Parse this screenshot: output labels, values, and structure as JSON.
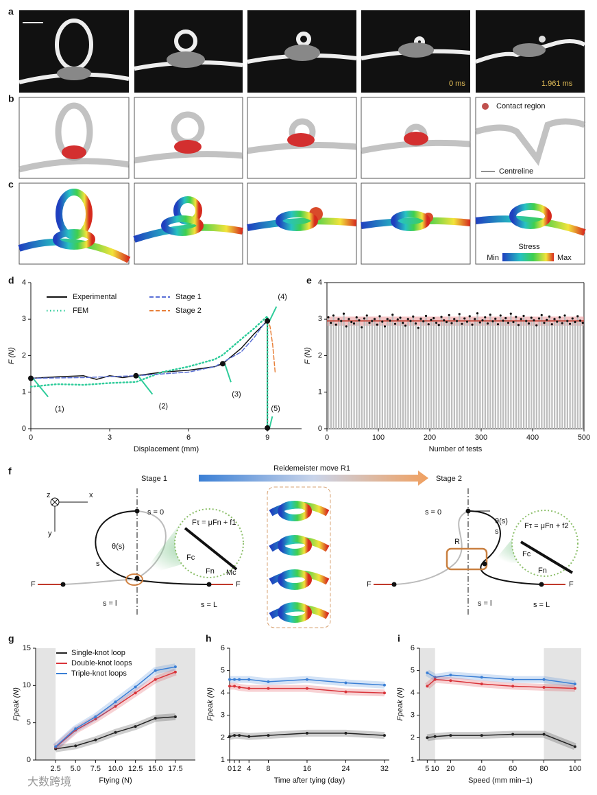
{
  "panel_labels": [
    "a",
    "b",
    "c",
    "d",
    "e",
    "f",
    "g",
    "h",
    "i"
  ],
  "panel_a": {
    "times": [
      "0 ms",
      "1.961 ms"
    ]
  },
  "panel_b": {
    "legend": [
      "Contact region",
      "Centreline"
    ]
  },
  "panel_c": {
    "colorbar": {
      "title": "Stress",
      "min": "Min",
      "max": "Max"
    }
  },
  "panel_f": {
    "title": "Reidemeister move R1",
    "stage1": "Stage 1",
    "stage2": "Stage 2",
    "axes": {
      "z": "z",
      "x": "x",
      "y": "y"
    },
    "left": {
      "s0": "s = 0",
      "s": "s",
      "theta": "θ(s)",
      "F_left": "F",
      "F_right": "F",
      "sl": "s = l",
      "sL": "s = L",
      "ftau": "Fτ = μFn + f1",
      "fc": "Fc",
      "fn": "Fn",
      "mc": "Mc"
    },
    "right": {
      "s0": "s = 0",
      "s": "s",
      "theta": "θ(s)",
      "R": "R",
      "F_left": "F",
      "F_right": "F",
      "sl": "s = l",
      "sL": "s = L",
      "ftau": "Fτ = μFn + f2",
      "fc": "Fc",
      "fn": "Fn"
    }
  },
  "watermark": "大数跨境",
  "chart_data": [
    {
      "type": "line",
      "x_label": "Displacement (mm)",
      "y_label": "F (N)",
      "xlim": [
        0,
        10.3
      ],
      "ylim": [
        0,
        4
      ],
      "xticks": [
        0,
        3,
        6,
        9
      ],
      "yticks": [
        0,
        1,
        2,
        3,
        4
      ],
      "legend": "upper left",
      "series": [
        {
          "name": "Experimental",
          "color": "#111111",
          "dash": "solid",
          "x": [
            0,
            1,
            2,
            2.5,
            3,
            3.5,
            4,
            5,
            6,
            7,
            7.3,
            8,
            8.5,
            9,
            9,
            9
          ],
          "values": [
            1.38,
            1.42,
            1.45,
            1.35,
            1.45,
            1.4,
            1.45,
            1.55,
            1.6,
            1.7,
            1.78,
            2.2,
            2.6,
            2.95,
            1.5,
            0.02
          ]
        },
        {
          "name": "FEM",
          "color": "#2ecc9a",
          "dash": "dotted",
          "x": [
            0,
            1,
            2,
            3,
            4,
            5,
            6,
            7,
            7.3,
            8,
            8.5,
            9,
            9,
            9
          ],
          "values": [
            1.15,
            1.22,
            1.2,
            1.25,
            1.28,
            1.55,
            1.7,
            1.9,
            2.02,
            2.45,
            2.75,
            3.08,
            1.5,
            0.1
          ]
        },
        {
          "name": "Stage 1",
          "color": "#5a6fd6",
          "dash": "dashed",
          "x": [
            0,
            2,
            4,
            6,
            7,
            8,
            8.5,
            9
          ],
          "values": [
            1.38,
            1.4,
            1.45,
            1.55,
            1.7,
            2.1,
            2.5,
            3.0
          ]
        },
        {
          "name": "Stage 2",
          "color": "#e8803a",
          "dash": "dashed",
          "x": [
            9,
            9.1,
            9.2,
            9.3
          ],
          "values": [
            3.0,
            2.8,
            2.3,
            1.5
          ]
        }
      ],
      "annotations": [
        "(1)",
        "(2)",
        "(3)",
        "(4)",
        "(5)"
      ],
      "annotation_x": [
        0,
        4,
        7.3,
        9,
        9
      ],
      "annotation_y": [
        1.38,
        1.45,
        1.78,
        2.95,
        0.02
      ]
    },
    {
      "type": "scatter",
      "x_label": "Number of tests",
      "y_label": "F (N)",
      "xlim": [
        0,
        500
      ],
      "ylim": [
        0,
        4
      ],
      "xticks": [
        0,
        100,
        200,
        300,
        400,
        500
      ],
      "yticks": [
        0,
        1,
        2,
        3,
        4
      ],
      "color": "#111111",
      "bar_color": "#bdbdbd",
      "band": [
        2.82,
        3.07
      ],
      "mean": 2.95,
      "band_color": "#e8888a",
      "x": [
        0,
        5,
        10,
        15,
        20,
        25,
        30,
        35,
        40,
        45,
        50,
        55,
        60,
        65,
        70,
        75,
        80,
        85,
        90,
        95,
        100,
        105,
        110,
        115,
        120,
        125,
        130,
        135,
        140,
        145,
        150,
        155,
        160,
        165,
        170,
        175,
        180,
        185,
        190,
        195,
        200,
        205,
        210,
        215,
        220,
        225,
        230,
        235,
        240,
        245,
        250,
        255,
        260,
        265,
        270,
        275,
        280,
        285,
        290,
        295,
        300,
        305,
        310,
        315,
        320,
        325,
        330,
        335,
        340,
        345,
        350,
        355,
        360,
        365,
        370,
        375,
        380,
        385,
        390,
        395,
        400,
        405,
        410,
        415,
        420,
        425,
        430,
        435,
        440,
        445,
        450,
        455,
        460,
        465,
        470,
        475,
        480,
        485,
        490,
        495
      ],
      "values": [
        3.05,
        2.9,
        3.1,
        2.85,
        3.0,
        2.95,
        3.15,
        2.8,
        3.0,
        2.92,
        2.88,
        3.05,
        2.97,
        2.78,
        3.02,
        3.1,
        2.9,
        2.95,
        3.0,
        2.85,
        3.08,
        2.93,
        2.8,
        3.0,
        2.96,
        3.12,
        2.87,
        2.99,
        3.04,
        2.9,
        2.82,
        3.0,
        2.95,
        3.07,
        2.88,
        2.76,
        3.01,
        2.94,
        3.09,
        2.86,
        2.98,
        3.03,
        2.9,
        2.84,
        3.06,
        2.97,
        2.92,
        3.11,
        2.89,
        3.0,
        2.95,
        3.14,
        2.87,
        3.02,
        2.93,
        3.08,
        2.85,
        3.0,
        3.16,
        2.91,
        2.97,
        3.05,
        2.88,
        3.12,
        2.94,
        3.01,
        2.86,
        3.1,
        2.96,
        3.03,
        2.9,
        3.15,
        2.92,
        3.06,
        2.84,
        3.0,
        3.09,
        2.95,
        2.88,
        3.04,
        2.97,
        2.83,
        3.02,
        3.11,
        2.9,
        2.98,
        3.07,
        2.86,
        3.0,
        2.93,
        3.05,
        2.89,
        3.1,
        2.95,
        2.87,
        3.02,
        2.92,
        3.08,
        2.96,
        2.9
      ]
    },
    {
      "type": "line",
      "x_label": "Ftying (N)",
      "y_label": "Fpeak (N)",
      "xlim": [
        0,
        20
      ],
      "ylim": [
        0,
        15
      ],
      "xticks": [
        2.5,
        {
          "value": 5,
          "label": "5.0"
        },
        7.5,
        {
          "value": 10,
          "label": "10.0"
        },
        12.5,
        {
          "value": 15,
          "label": "15.0"
        },
        17.5
      ],
      "yticks": [
        0,
        5,
        10,
        15
      ],
      "legend": "upper left",
      "markers": true,
      "bands": true,
      "shaded_x": [
        [
          0,
          2.5
        ],
        [
          15,
          20
        ]
      ],
      "x": [
        2.5,
        5,
        7.5,
        10,
        12.5,
        15,
        17.5
      ],
      "series": [
        {
          "name": "Single-knot loop",
          "color": "#222222",
          "values": [
            1.5,
            1.9,
            2.7,
            3.7,
            4.5,
            5.6,
            5.8
          ]
        },
        {
          "name": "Double-knot loops",
          "color": "#d9343a",
          "values": [
            1.7,
            4.0,
            5.5,
            7.2,
            9.0,
            10.8,
            11.8
          ]
        },
        {
          "name": "Triple-knot loops",
          "color": "#3a7fd5",
          "values": [
            1.8,
            4.2,
            5.8,
            7.8,
            9.8,
            12,
            12.5
          ]
        }
      ]
    },
    {
      "type": "line",
      "x_label": "Time after tying (day)",
      "y_label": "Fpeak (N)",
      "xlim": [
        0,
        33
      ],
      "ylim": [
        1,
        6
      ],
      "xticks": [
        0,
        1,
        2,
        4,
        8,
        16,
        24,
        32
      ],
      "yticks": [
        1,
        2,
        3,
        4,
        5,
        6
      ],
      "markers": true,
      "bands": true,
      "x": [
        0,
        1,
        2,
        4,
        8,
        16,
        24,
        32
      ],
      "series": [
        {
          "color": "#3a7fd5",
          "values": [
            4.6,
            4.6,
            4.6,
            4.6,
            4.5,
            4.6,
            4.45,
            4.35
          ]
        },
        {
          "color": "#d9343a",
          "values": [
            4.3,
            4.3,
            4.25,
            4.2,
            4.2,
            4.2,
            4.05,
            4.0
          ]
        },
        {
          "color": "#222222",
          "values": [
            2.05,
            2.1,
            2.1,
            2.05,
            2.1,
            2.2,
            2.2,
            2.1
          ]
        }
      ]
    },
    {
      "type": "line",
      "x_label": "Speed (mm min−1)",
      "y_label": "Fpeak (N)",
      "xlim": [
        0,
        104
      ],
      "ylim": [
        1,
        6
      ],
      "xticks": [
        5,
        10,
        20,
        40,
        60,
        80,
        100
      ],
      "yticks": [
        1,
        2,
        3,
        4,
        5,
        6
      ],
      "markers": true,
      "bands": true,
      "shaded_x": [
        [
          0,
          10
        ],
        [
          80,
          104
        ]
      ],
      "x": [
        5,
        10,
        20,
        40,
        60,
        80,
        100
      ],
      "series": [
        {
          "color": "#3a7fd5",
          "values": [
            4.9,
            4.7,
            4.8,
            4.7,
            4.6,
            4.6,
            4.4
          ]
        },
        {
          "color": "#d9343a",
          "values": [
            4.3,
            4.6,
            4.55,
            4.4,
            4.3,
            4.25,
            4.2
          ]
        },
        {
          "color": "#222222",
          "values": [
            2.0,
            2.05,
            2.1,
            2.1,
            2.15,
            2.15,
            1.6
          ]
        }
      ]
    }
  ]
}
